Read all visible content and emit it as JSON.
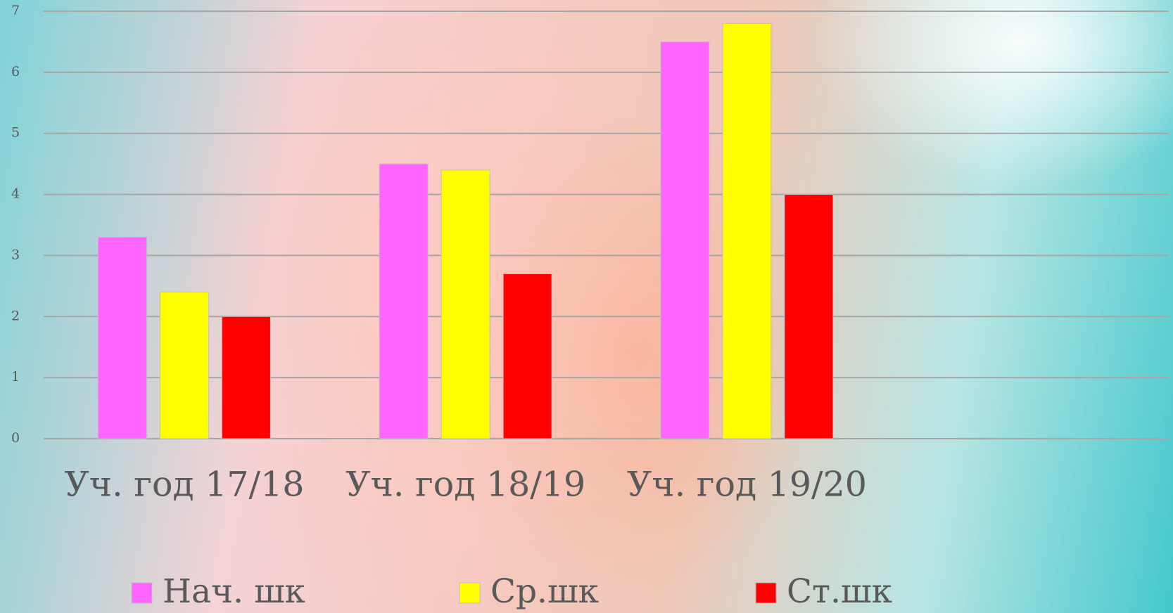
{
  "chart_data": {
    "type": "bar",
    "categories": [
      "Уч. год 17/18",
      "Уч. год 18/19",
      "Уч. год 19/20",
      null
    ],
    "series": [
      {
        "name": "Нач. шк",
        "color": "#ff66ff",
        "values": [
          3.3,
          4.5,
          6.5,
          null
        ]
      },
      {
        "name": "Ср.шк",
        "color": "#ffff00",
        "values": [
          2.4,
          4.4,
          6.8,
          null
        ]
      },
      {
        "name": "Ст.шк",
        "color": "#ff0000",
        "values": [
          2.0,
          2.7,
          4.0,
          null
        ]
      }
    ],
    "ylim": [
      0,
      7
    ],
    "yticks": [
      0,
      1,
      2,
      3,
      4,
      5,
      6,
      7
    ],
    "grid": true,
    "legend": "bottom"
  }
}
